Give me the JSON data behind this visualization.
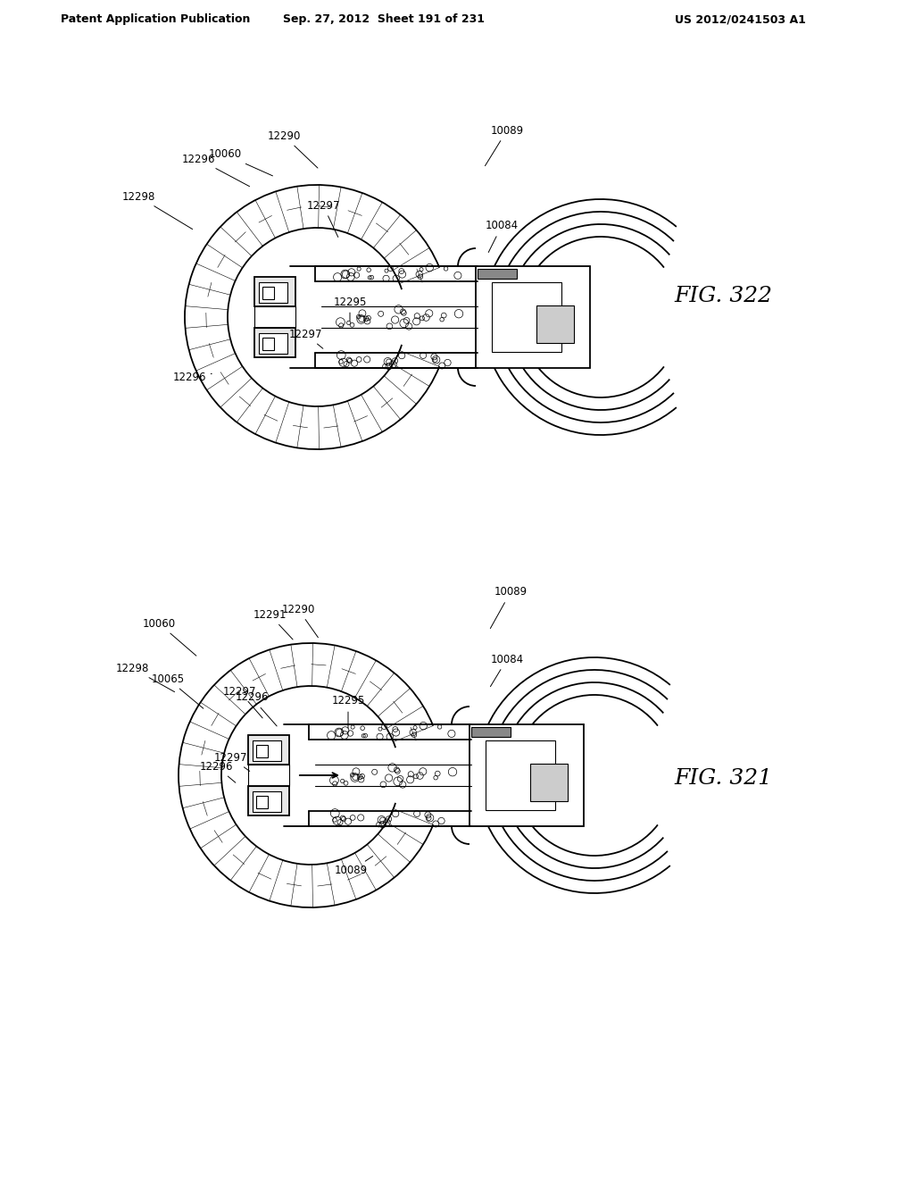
{
  "background": "#ffffff",
  "header_left": "Patent Application Publication",
  "header_mid": "Sep. 27, 2012  Sheet 191 of 231",
  "header_right": "US 2012/0241503 A1",
  "fig322_label": "FIG. 322",
  "fig321_label": "FIG. 321"
}
